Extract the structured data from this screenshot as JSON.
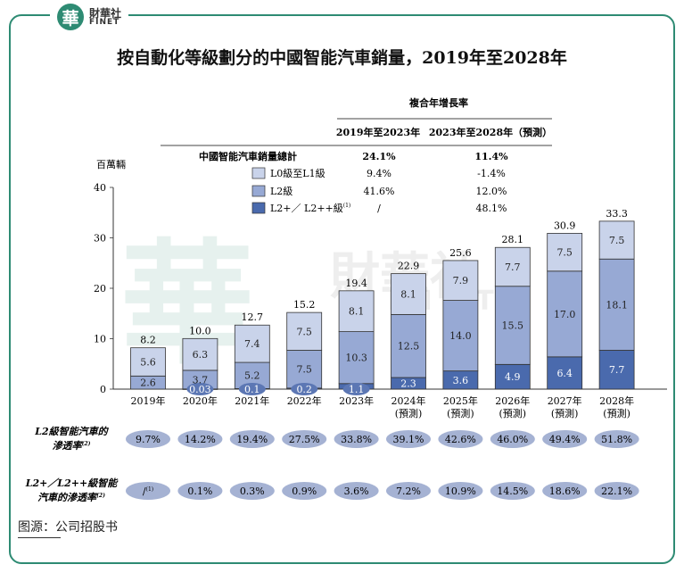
{
  "logo": {
    "mark": "華",
    "cn": "財華社",
    "en": "FINET"
  },
  "title": "按自動化等級劃分的中國智能汽車銷量，2019年至2028年",
  "source": "图源：公司招股书",
  "watermark": {
    "mark": "華",
    "cn": "財華社",
    "en": "FINET"
  },
  "cagr_table": {
    "header": "複合年增長率",
    "columns": [
      "2019年至2023年",
      "2023年至2028年（預測）"
    ],
    "rows": [
      {
        "label": "中國智能汽車銷量總計",
        "values": [
          "24.1%",
          "11.4%"
        ],
        "swatch": null
      },
      {
        "label": "L0級至L1級",
        "values": [
          "9.4%",
          "-1.4%"
        ],
        "swatch": "#c9d3ea"
      },
      {
        "label": "L2級",
        "values": [
          "41.6%",
          "12.0%"
        ],
        "swatch": "#97a9d4"
      },
      {
        "label": "L2+／ L2++級",
        "label_sup": "(1)",
        "values": [
          "/",
          "48.1%"
        ],
        "swatch": "#4a6aad"
      }
    ]
  },
  "colors": {
    "l01": "#c9d3ea",
    "l2": "#97a9d4",
    "l2plus": "#4a6aad",
    "pill": "#a5b2d3",
    "pill_dark": "#5c77b4",
    "frame": "#2e8b73"
  },
  "chart_data": {
    "type": "bar",
    "stacked": true,
    "ylabel": "百萬輛",
    "ylim": [
      0,
      40
    ],
    "yticks": [
      0,
      10,
      20,
      30,
      40
    ],
    "categories": [
      "2019年",
      "2020年",
      "2021年",
      "2022年",
      "2023年",
      "2024年",
      "2025年",
      "2026年",
      "2027年",
      "2028年"
    ],
    "category_notes": [
      "",
      "",
      "",
      "",
      "",
      "(預測)",
      "(預測)",
      "(預測)",
      "(預測)",
      "(預測)"
    ],
    "series": [
      {
        "name": "L2+／ L2++級",
        "values": [
          null,
          0.03,
          0.1,
          0.2,
          1.1,
          2.3,
          3.6,
          4.9,
          6.4,
          7.7
        ],
        "labels": [
          "",
          "0.03",
          "0.1",
          "0.2",
          "1.1",
          "2.3",
          "3.6",
          "4.9",
          "6.4",
          "7.7"
        ]
      },
      {
        "name": "L2級",
        "values": [
          2.6,
          3.7,
          5.2,
          7.5,
          10.3,
          12.5,
          14.0,
          15.5,
          17.0,
          18.1
        ],
        "labels": [
          "2.6",
          "3.7",
          "5.2",
          "7.5",
          "10.3",
          "12.5",
          "14.0",
          "15.5",
          "17.0",
          "18.1"
        ]
      },
      {
        "name": "L0級至L1級",
        "values": [
          5.6,
          6.3,
          7.4,
          7.5,
          8.1,
          8.1,
          7.9,
          7.7,
          7.5,
          7.5
        ],
        "labels": [
          "5.6",
          "6.3",
          "7.4",
          "7.5",
          "8.1",
          "8.1",
          "7.9",
          "7.7",
          "7.5",
          "7.5"
        ]
      }
    ],
    "totals": [
      "8.2",
      "10.0",
      "12.7",
      "15.2",
      "19.4",
      "22.9",
      "25.6",
      "28.1",
      "30.9",
      "33.3"
    ],
    "penetration_rows": [
      {
        "label_lines": [
          "L2級智能汽車的",
          "滲透率"
        ],
        "label_sup": "(2)",
        "values": [
          "9.7%",
          "14.2%",
          "19.4%",
          "27.5%",
          "33.8%",
          "39.1%",
          "42.6%",
          "46.0%",
          "49.4%",
          "51.8%"
        ]
      },
      {
        "label_lines": [
          "L2+／L2++級智能",
          "汽車的滲透率"
        ],
        "label_sup": "(2)",
        "values": [
          "/",
          "0.1%",
          "0.3%",
          "0.9%",
          "3.6%",
          "7.2%",
          "10.9%",
          "14.5%",
          "18.6%",
          "22.1%"
        ],
        "value_sups": [
          "(1)",
          "",
          "",
          "",
          "",
          "",
          "",
          "",
          "",
          ""
        ]
      }
    ]
  }
}
